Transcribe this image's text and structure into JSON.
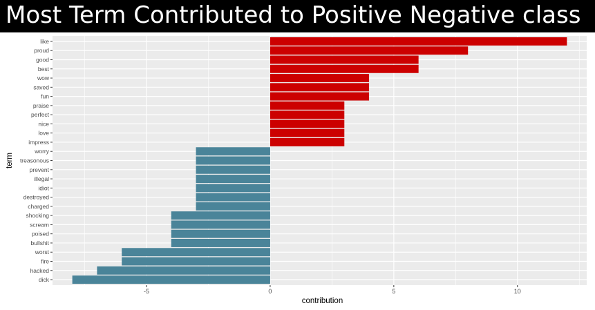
{
  "header": {
    "title": "Most Term Contributed to Positive Negative class"
  },
  "chart_data": {
    "type": "bar",
    "orientation": "horizontal",
    "title": "Most Term Contributed to Positive Negative class",
    "xlabel": "contribution",
    "ylabel": "term",
    "xlim": [
      -8.8,
      12.8
    ],
    "xticks": [
      "-5",
      "0",
      "5",
      "10"
    ],
    "xtick_values": [
      -5,
      0,
      5,
      10
    ],
    "grid": true,
    "legend": "none",
    "colors": {
      "positive": "#cc0000",
      "negative": "#4a8499",
      "panel": "#ebebeb",
      "grid": "#ffffff"
    },
    "categories": [
      "like",
      "proud",
      "good",
      "best",
      "wow",
      "saved",
      "fun",
      "praise",
      "perfect",
      "nice",
      "love",
      "impress",
      "worry",
      "treasonous",
      "prevent",
      "illegal",
      "idiot",
      "destroyed",
      "charged",
      "shocking",
      "scream",
      "poised",
      "bullshit",
      "worst",
      "fire",
      "hacked",
      "dick"
    ],
    "values": [
      12,
      8,
      6,
      6,
      4,
      4,
      4,
      3,
      3,
      3,
      3,
      3,
      -3,
      -3,
      -3,
      -3,
      -3,
      -3,
      -3,
      -4,
      -4,
      -4,
      -4,
      -6,
      -6,
      -7,
      -8
    ]
  }
}
